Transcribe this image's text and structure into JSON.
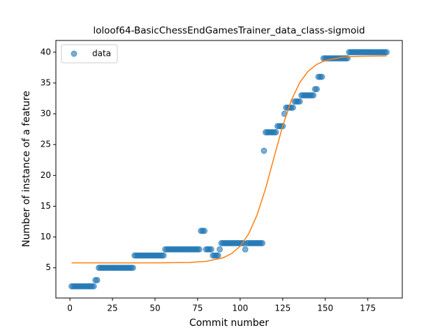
{
  "chart_data": {
    "type": "scatter",
    "title": "loloof64-BasicChessEndGamesTrainer_data_class-sigmoid",
    "xlabel": "Commit number",
    "ylabel": "Number of instance of a feature",
    "xlim": [
      -8.25,
      195.25
    ],
    "xticks": [
      0,
      25,
      50,
      75,
      100,
      125,
      150,
      175
    ],
    "ylim": [
      0.1,
      41.9
    ],
    "yticks": [
      5,
      10,
      15,
      20,
      25,
      30,
      35,
      40
    ],
    "legend": "upper left",
    "grid": false,
    "series": [
      {
        "name": "data",
        "type": "scatter",
        "color": "#1f77b4",
        "x": [
          1,
          2,
          3,
          4,
          5,
          6,
          7,
          8,
          9,
          10,
          11,
          12,
          13,
          14,
          15,
          16,
          17,
          18,
          19,
          20,
          21,
          22,
          23,
          24,
          25,
          26,
          27,
          28,
          29,
          30,
          31,
          32,
          33,
          34,
          35,
          36,
          37,
          38,
          39,
          40,
          41,
          42,
          43,
          44,
          45,
          46,
          47,
          48,
          49,
          50,
          51,
          52,
          53,
          54,
          55,
          56,
          57,
          58,
          59,
          60,
          61,
          62,
          63,
          64,
          65,
          66,
          67,
          68,
          69,
          70,
          71,
          72,
          73,
          74,
          75,
          76,
          77,
          78,
          79,
          80,
          81,
          82,
          83,
          84,
          85,
          86,
          87,
          88,
          89,
          90,
          91,
          92,
          93,
          94,
          95,
          96,
          97,
          98,
          99,
          100,
          101,
          102,
          103,
          104,
          105,
          106,
          107,
          108,
          109,
          110,
          111,
          112,
          113,
          114,
          115,
          116,
          117,
          118,
          119,
          120,
          121,
          122,
          123,
          124,
          125,
          126,
          127,
          128,
          129,
          130,
          131,
          132,
          133,
          134,
          135,
          136,
          137,
          138,
          139,
          140,
          141,
          142,
          143,
          144,
          145,
          146,
          147,
          148,
          149,
          150,
          151,
          152,
          153,
          154,
          155,
          156,
          157,
          158,
          159,
          160,
          161,
          162,
          163,
          164,
          165,
          166,
          167,
          168,
          169,
          170,
          171,
          172,
          173,
          174,
          175,
          176,
          177,
          178,
          179,
          180,
          181,
          182,
          183,
          184,
          185,
          186
        ],
        "values": [
          2,
          2,
          2,
          2,
          2,
          2,
          2,
          2,
          2,
          2,
          2,
          2,
          2,
          2,
          3,
          3,
          5,
          5,
          5,
          5,
          5,
          5,
          5,
          5,
          5,
          5,
          5,
          5,
          5,
          5,
          5,
          5,
          5,
          5,
          5,
          5,
          5,
          7,
          7,
          7,
          7,
          7,
          7,
          7,
          7,
          7,
          7,
          7,
          7,
          7,
          7,
          7,
          7,
          7,
          7,
          8,
          8,
          8,
          8,
          8,
          8,
          8,
          8,
          8,
          8,
          8,
          8,
          8,
          8,
          8,
          8,
          8,
          8,
          8,
          8,
          8,
          11,
          11,
          11,
          8,
          8,
          8,
          8,
          7,
          7,
          7,
          7,
          8,
          9,
          9,
          9,
          9,
          9,
          9,
          9,
          9,
          9,
          9,
          9,
          9,
          9,
          9,
          8,
          9,
          9,
          9,
          9,
          9,
          9,
          9,
          9,
          9,
          9,
          24,
          27,
          27,
          27,
          27,
          27,
          27,
          27,
          28,
          28,
          28,
          28,
          30,
          31,
          31,
          31,
          31,
          31,
          32,
          32,
          32,
          32,
          33,
          33,
          33,
          33,
          33,
          33,
          33,
          33,
          34,
          34,
          36,
          36,
          36,
          39,
          39,
          39,
          39,
          39,
          39,
          39,
          39,
          39,
          39,
          39,
          39,
          39,
          39,
          39,
          40,
          40,
          40,
          40,
          40,
          40,
          40,
          40,
          40,
          40,
          40,
          40,
          40,
          40,
          40,
          40,
          40,
          40,
          40,
          40,
          40,
          40,
          40
        ]
      },
      {
        "type": "line",
        "color": "#ff7f0e",
        "x": [
          1,
          50,
          70,
          80,
          90,
          95,
          100,
          105,
          110,
          115,
          120,
          125,
          130,
          135,
          140,
          145,
          150,
          160,
          170,
          186
        ],
        "values": [
          5.8,
          5.81,
          5.87,
          6.05,
          6.63,
          7.32,
          8.51,
          10.52,
          13.63,
          17.93,
          23.03,
          28.05,
          32.15,
          35.07,
          36.92,
          38.02,
          38.64,
          39.18,
          39.34,
          39.39
        ]
      }
    ]
  }
}
